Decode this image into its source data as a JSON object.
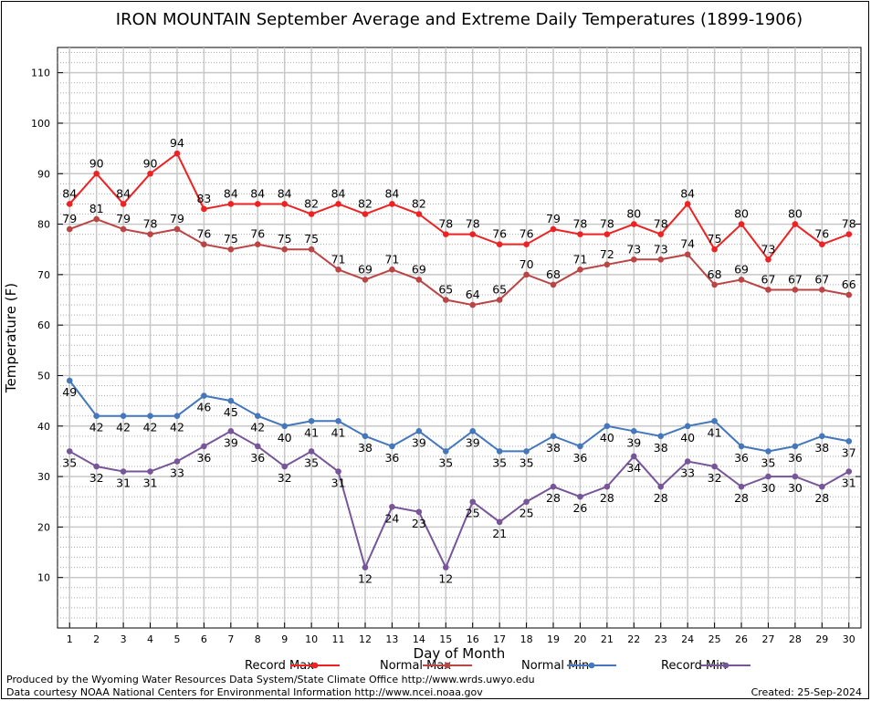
{
  "chart_data": {
    "type": "line",
    "title": "IRON MOUNTAIN September Average and Extreme Daily Temperatures (1899-1906)",
    "xlabel": "Day of Month",
    "ylabel": "Temperature (F)",
    "x": [
      1,
      2,
      3,
      4,
      5,
      6,
      7,
      8,
      9,
      10,
      11,
      12,
      13,
      14,
      15,
      16,
      17,
      18,
      19,
      20,
      21,
      22,
      23,
      24,
      25,
      26,
      27,
      28,
      29,
      30
    ],
    "xlim": [
      0.55,
      30.45
    ],
    "ylim": [
      0,
      115
    ],
    "yticks": [
      10,
      20,
      30,
      40,
      50,
      60,
      70,
      80,
      90,
      100,
      110
    ],
    "grid": true,
    "legend_position": "bottom",
    "series": [
      {
        "name": "Record Max",
        "color": "#ee2222",
        "label_position": "above",
        "values": [
          84,
          90,
          84,
          90,
          94,
          83,
          84,
          84,
          84,
          82,
          84,
          82,
          84,
          82,
          78,
          78,
          76,
          76,
          79,
          78,
          78,
          80,
          78,
          84,
          75,
          80,
          73,
          80,
          76,
          78
        ]
      },
      {
        "name": "Normal Max",
        "color": "#bb4444",
        "label_position": "above",
        "values": [
          79,
          81,
          79,
          78,
          79,
          76,
          75,
          76,
          75,
          75,
          71,
          69,
          71,
          69,
          65,
          64,
          65,
          70,
          68,
          71,
          72,
          73,
          73,
          74,
          68,
          69,
          67,
          67,
          67,
          66
        ]
      },
      {
        "name": "Normal Min",
        "color": "#4477bb",
        "label_position": "below",
        "values": [
          49,
          42,
          42,
          42,
          42,
          46,
          45,
          42,
          40,
          41,
          41,
          38,
          36,
          39,
          35,
          39,
          35,
          35,
          38,
          36,
          40,
          39,
          38,
          40,
          41,
          36,
          35,
          36,
          38,
          37
        ]
      },
      {
        "name": "Record Min",
        "color": "#775599",
        "label_position": "below",
        "values": [
          35,
          32,
          31,
          31,
          33,
          36,
          39,
          36,
          32,
          35,
          31,
          12,
          24,
          23,
          12,
          25,
          21,
          25,
          28,
          26,
          28,
          34,
          28,
          33,
          32,
          28,
          30,
          30,
          28,
          31
        ]
      }
    ]
  },
  "footer": {
    "produced_by": "Produced by the Wyoming Water Resources Data System/State Climate Office http://www.wrds.uwyo.edu",
    "courtesy": "Data courtesy NOAA National Centers for Environmental Information http://www.ncei.noaa.gov",
    "created": "Created:  25-Sep-2024"
  }
}
